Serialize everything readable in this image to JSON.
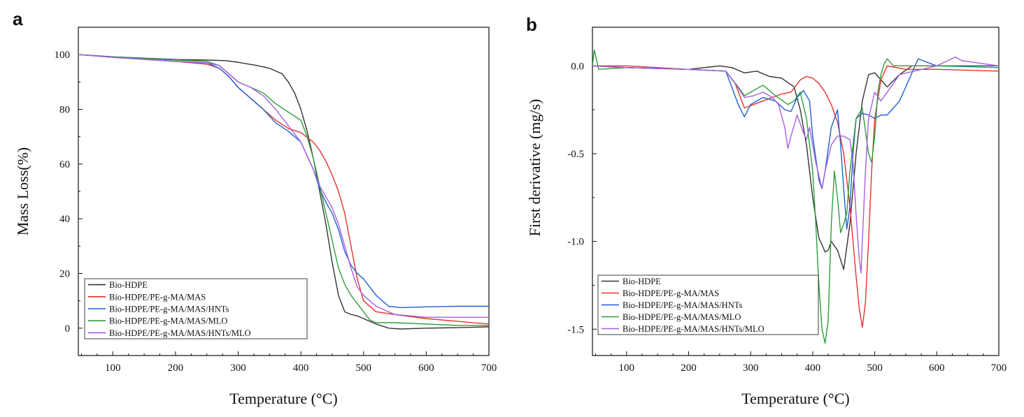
{
  "chart_data": [
    {
      "panel": "a",
      "type": "line",
      "xlabel": "Temperature (°C)",
      "ylabel": "Mass Loss(%)",
      "xlim": [
        45,
        700
      ],
      "ylim": [
        -10,
        110
      ],
      "xticks": [
        100,
        200,
        300,
        400,
        500,
        600,
        700
      ],
      "yticks": [
        0,
        20,
        40,
        60,
        80,
        100
      ],
      "legend_position": "bottom-left",
      "series": [
        {
          "name": "Bio-HDPE",
          "color": "#333333",
          "x": [
            45,
            100,
            200,
            250,
            280,
            300,
            330,
            350,
            370,
            380,
            390,
            400,
            410,
            420,
            430,
            440,
            450,
            460,
            470,
            480,
            490,
            500,
            520,
            540,
            560,
            600,
            650,
            700
          ],
          "y": [
            100,
            99.2,
            98.2,
            98,
            97.8,
            97.2,
            96,
            95,
            93,
            90,
            86,
            80,
            72,
            62,
            50,
            38,
            24,
            12,
            6,
            5,
            4.5,
            3.5,
            1.5,
            0,
            -0.3,
            0,
            0.2,
            0.5
          ]
        },
        {
          "name": "Bio-HDPE/PE-g-MA/MAS",
          "color": "#e8322c",
          "x": [
            45,
            100,
            200,
            250,
            270,
            285,
            300,
            320,
            340,
            360,
            380,
            400,
            420,
            430,
            440,
            450,
            460,
            470,
            480,
            490,
            500,
            520,
            550,
            600,
            650,
            700
          ],
          "y": [
            100,
            99,
            97.5,
            96.5,
            95,
            92,
            88,
            84,
            80,
            76,
            73,
            71.5,
            68,
            65,
            61,
            56,
            50,
            42,
            30,
            18,
            10,
            6,
            5,
            3.5,
            2.5,
            1.5
          ]
        },
        {
          "name": "Bio-HDPE/PE-g-MA/MAS/HNTs",
          "color": "#2060d0",
          "x": [
            45,
            100,
            200,
            250,
            270,
            285,
            300,
            320,
            340,
            360,
            380,
            400,
            420,
            430,
            440,
            450,
            460,
            470,
            480,
            490,
            500,
            520,
            540,
            560,
            600,
            650,
            700
          ],
          "y": [
            100,
            99,
            97.5,
            97,
            95,
            92,
            88,
            84,
            80,
            75,
            72,
            68,
            58,
            51,
            46,
            42,
            36,
            28,
            23,
            20,
            18,
            12,
            8,
            7.5,
            7.8,
            8,
            8
          ]
        },
        {
          "name": "Bio-HDPE/PE-g-MA/MAS/MLO",
          "color": "#2e9e3e",
          "x": [
            45,
            100,
            200,
            250,
            270,
            285,
            300,
            320,
            340,
            360,
            380,
            400,
            410,
            420,
            430,
            440,
            450,
            460,
            470,
            480,
            490,
            500,
            510,
            520,
            550,
            600,
            650,
            700
          ],
          "y": [
            100,
            99.2,
            98,
            97.5,
            96,
            93,
            90,
            88,
            86,
            82,
            79,
            76,
            70,
            62,
            52,
            42,
            32,
            22,
            16,
            12,
            9,
            6,
            3,
            2,
            2,
            1.5,
            1,
            1
          ]
        },
        {
          "name": "Bio-HDPE/PE-g-MA/MAS/HNTs/MLO",
          "color": "#a75ee0",
          "x": [
            45,
            100,
            200,
            250,
            270,
            285,
            300,
            320,
            340,
            360,
            380,
            400,
            420,
            430,
            440,
            450,
            460,
            470,
            480,
            490,
            500,
            520,
            550,
            600,
            650,
            700
          ],
          "y": [
            100,
            99,
            97.5,
            97,
            96,
            93,
            90,
            88,
            85,
            80,
            74,
            68,
            58,
            52,
            48,
            44,
            38,
            30,
            22,
            15,
            12,
            8,
            5,
            4,
            4,
            4
          ]
        }
      ]
    },
    {
      "panel": "b",
      "type": "line",
      "xlabel": "Temperature (°C)",
      "ylabel": "First derivative (mg/s)",
      "xlim": [
        45,
        700
      ],
      "ylim": [
        -1.65,
        0.22
      ],
      "xticks": [
        100,
        200,
        300,
        400,
        500,
        600,
        700
      ],
      "yticks": [
        0.0,
        -0.5,
        -1.0,
        -1.5
      ],
      "ytick_labels": [
        "0.0",
        "-0.5",
        "-1.0",
        "-1.5"
      ],
      "legend_position": "bottom-left",
      "series": [
        {
          "name": "Bio-HDPE",
          "color": "#333333",
          "x": [
            45,
            100,
            200,
            250,
            270,
            290,
            310,
            330,
            350,
            370,
            380,
            390,
            400,
            410,
            420,
            425,
            430,
            440,
            450,
            460,
            470,
            480,
            490,
            500,
            510,
            520,
            540,
            560,
            600,
            700
          ],
          "y": [
            0,
            -0.01,
            -0.02,
            0.0,
            -0.01,
            -0.04,
            -0.03,
            -0.06,
            -0.07,
            -0.12,
            -0.25,
            -0.45,
            -0.75,
            -0.98,
            -1.06,
            -1.05,
            -1.0,
            -1.05,
            -1.16,
            -0.9,
            -0.5,
            -0.2,
            -0.05,
            -0.04,
            -0.08,
            -0.12,
            -0.05,
            0.0,
            0.0,
            0.0
          ]
        },
        {
          "name": "Bio-HDPE/PE-g-MA/MAS",
          "color": "#e8322c",
          "x": [
            45,
            100,
            200,
            260,
            275,
            290,
            305,
            320,
            335,
            350,
            365,
            380,
            390,
            400,
            410,
            420,
            430,
            440,
            450,
            460,
            465,
            470,
            475,
            480,
            485,
            490,
            495,
            500,
            510,
            520,
            550,
            600,
            700
          ],
          "y": [
            0,
            0.0,
            -0.02,
            -0.03,
            -0.1,
            -0.24,
            -0.22,
            -0.2,
            -0.18,
            -0.16,
            -0.15,
            -0.08,
            -0.06,
            -0.07,
            -0.1,
            -0.15,
            -0.22,
            -0.32,
            -0.5,
            -0.8,
            -1.0,
            -1.2,
            -1.38,
            -1.49,
            -1.35,
            -1.0,
            -0.6,
            -0.3,
            -0.08,
            0.0,
            -0.02,
            -0.02,
            -0.03
          ]
        },
        {
          "name": "Bio-HDPE/PE-g-MA/MAS/HNTs",
          "color": "#2060d0",
          "x": [
            45,
            100,
            200,
            260,
            280,
            290,
            300,
            320,
            340,
            355,
            365,
            375,
            385,
            395,
            400,
            410,
            415,
            420,
            430,
            440,
            445,
            450,
            455,
            460,
            465,
            470,
            480,
            490,
            500,
            510,
            520,
            540,
            570,
            600,
            700
          ],
          "y": [
            0,
            -0.01,
            -0.02,
            -0.03,
            -0.22,
            -0.29,
            -0.22,
            -0.18,
            -0.2,
            -0.25,
            -0.26,
            -0.18,
            -0.14,
            -0.2,
            -0.4,
            -0.65,
            -0.7,
            -0.6,
            -0.35,
            -0.25,
            -0.45,
            -0.7,
            -0.93,
            -0.8,
            -0.5,
            -0.3,
            -0.27,
            -0.28,
            -0.3,
            -0.28,
            -0.28,
            -0.2,
            0.04,
            0.0,
            0.0
          ]
        },
        {
          "name": "Bio-HDPE/PE-g-MA/MAS/MLO",
          "color": "#2e9e3e",
          "x": [
            45,
            48,
            55,
            100,
            200,
            260,
            280,
            290,
            300,
            320,
            340,
            360,
            370,
            380,
            390,
            400,
            405,
            410,
            415,
            420,
            425,
            430,
            435,
            440,
            445,
            450,
            455,
            460,
            470,
            480,
            490,
            495,
            500,
            505,
            510,
            515,
            520,
            530,
            600,
            700
          ],
          "y": [
            0.0,
            0.09,
            -0.02,
            -0.01,
            -0.02,
            -0.03,
            -0.12,
            -0.17,
            -0.15,
            -0.11,
            -0.17,
            -0.22,
            -0.2,
            -0.15,
            -0.3,
            -0.6,
            -0.9,
            -1.25,
            -1.5,
            -1.58,
            -1.45,
            -0.9,
            -0.6,
            -0.75,
            -0.95,
            -0.9,
            -0.84,
            -0.6,
            -0.3,
            -0.24,
            -0.5,
            -0.55,
            -0.4,
            -0.15,
            -0.05,
            0.01,
            0.04,
            0.0,
            0.0,
            -0.01
          ]
        },
        {
          "name": "Bio-HDPE/PE-g-MA/MAS/HNTs/MLO",
          "color": "#a75ee0",
          "x": [
            45,
            100,
            200,
            260,
            275,
            290,
            305,
            320,
            335,
            345,
            355,
            360,
            365,
            375,
            385,
            390,
            395,
            405,
            415,
            420,
            430,
            440,
            450,
            460,
            465,
            470,
            475,
            478,
            480,
            485,
            490,
            500,
            510,
            540,
            600,
            630,
            640,
            700
          ],
          "y": [
            0,
            -0.01,
            -0.02,
            -0.03,
            -0.1,
            -0.18,
            -0.17,
            -0.15,
            -0.18,
            -0.22,
            -0.35,
            -0.47,
            -0.4,
            -0.28,
            -0.38,
            -0.42,
            -0.35,
            -0.55,
            -0.7,
            -0.6,
            -0.45,
            -0.4,
            -0.4,
            -0.42,
            -0.55,
            -0.85,
            -1.1,
            -1.18,
            -1.0,
            -0.6,
            -0.3,
            -0.15,
            -0.2,
            -0.05,
            0.0,
            0.05,
            0.03,
            0.0
          ]
        }
      ]
    }
  ]
}
